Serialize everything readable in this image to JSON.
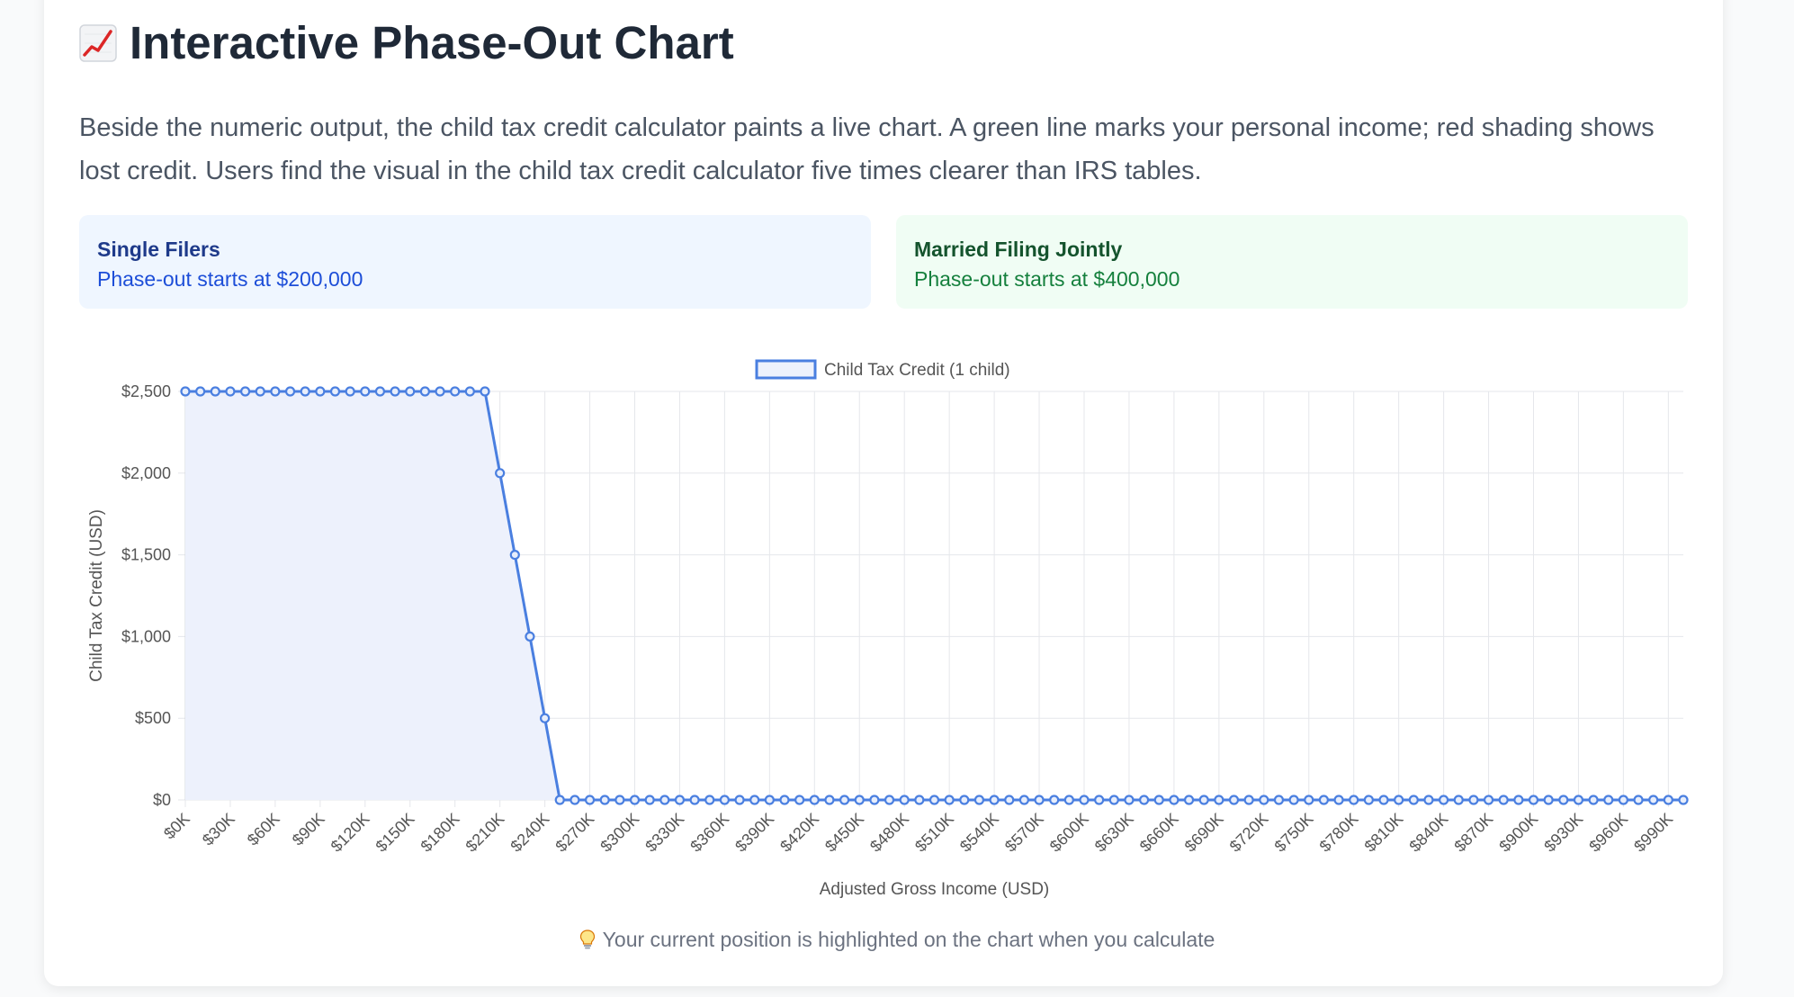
{
  "page": {
    "title": "Interactive Phase-Out Chart",
    "title_icon": "chart-increasing-icon",
    "intro": "Beside the numeric output, the child tax credit calculator paints a live chart. A green line marks your personal income; red shading shows lost credit. Users find the visual in the child tax credit calculator five times clearer than IRS tables.",
    "tip_icon": "lightbulb-icon",
    "tip": "Your current position is highlighted on the chart when you calculate"
  },
  "boxes": {
    "single": {
      "title": "Single Filers",
      "text": "Phase-out starts at $200,000"
    },
    "married": {
      "title": "Married Filing Jointly",
      "text": "Phase-out starts at $400,000"
    }
  },
  "chart_data": {
    "type": "line",
    "title": "",
    "xlabel": "Adjusted Gross Income (USD)",
    "ylabel": "Child Tax Credit (USD)",
    "x_step": 10000,
    "x_range": [
      0,
      1000000
    ],
    "ylim": [
      0,
      2500
    ],
    "y_ticks": [
      0,
      500,
      1000,
      1500,
      2000,
      2500
    ],
    "y_tick_labels": [
      "$0",
      "$500",
      "$1,000",
      "$1,500",
      "$2,000",
      "$2,500"
    ],
    "x_tick_labels": [
      "$0K",
      "$30K",
      "$60K",
      "$90K",
      "$120K",
      "$150K",
      "$180K",
      "$210K",
      "$240K",
      "$270K",
      "$300K",
      "$330K",
      "$360K",
      "$390K",
      "$420K",
      "$450K",
      "$480K",
      "$510K",
      "$540K",
      "$570K",
      "$600K",
      "$630K",
      "$660K",
      "$690K",
      "$720K",
      "$750K",
      "$780K",
      "$810K",
      "$840K",
      "$870K",
      "$900K",
      "$930K",
      "$960K",
      "$990K"
    ],
    "grid": true,
    "legend_position": "top-center",
    "series": [
      {
        "name": "Child Tax Credit (1 child)",
        "color": "#4a7fe0",
        "fill": "#edf1fc",
        "values": [
          2500,
          2500,
          2500,
          2500,
          2500,
          2500,
          2500,
          2500,
          2500,
          2500,
          2500,
          2500,
          2500,
          2500,
          2500,
          2500,
          2500,
          2500,
          2500,
          2500,
          2500,
          2000,
          1500,
          1000,
          500,
          0,
          0,
          0,
          0,
          0,
          0,
          0,
          0,
          0,
          0,
          0,
          0,
          0,
          0,
          0,
          0,
          0,
          0,
          0,
          0,
          0,
          0,
          0,
          0,
          0,
          0,
          0,
          0,
          0,
          0,
          0,
          0,
          0,
          0,
          0,
          0,
          0,
          0,
          0,
          0,
          0,
          0,
          0,
          0,
          0,
          0,
          0,
          0,
          0,
          0,
          0,
          0,
          0,
          0,
          0,
          0,
          0,
          0,
          0,
          0,
          0,
          0,
          0,
          0,
          0,
          0,
          0,
          0,
          0,
          0,
          0,
          0,
          0,
          0,
          0,
          0
        ]
      }
    ]
  }
}
